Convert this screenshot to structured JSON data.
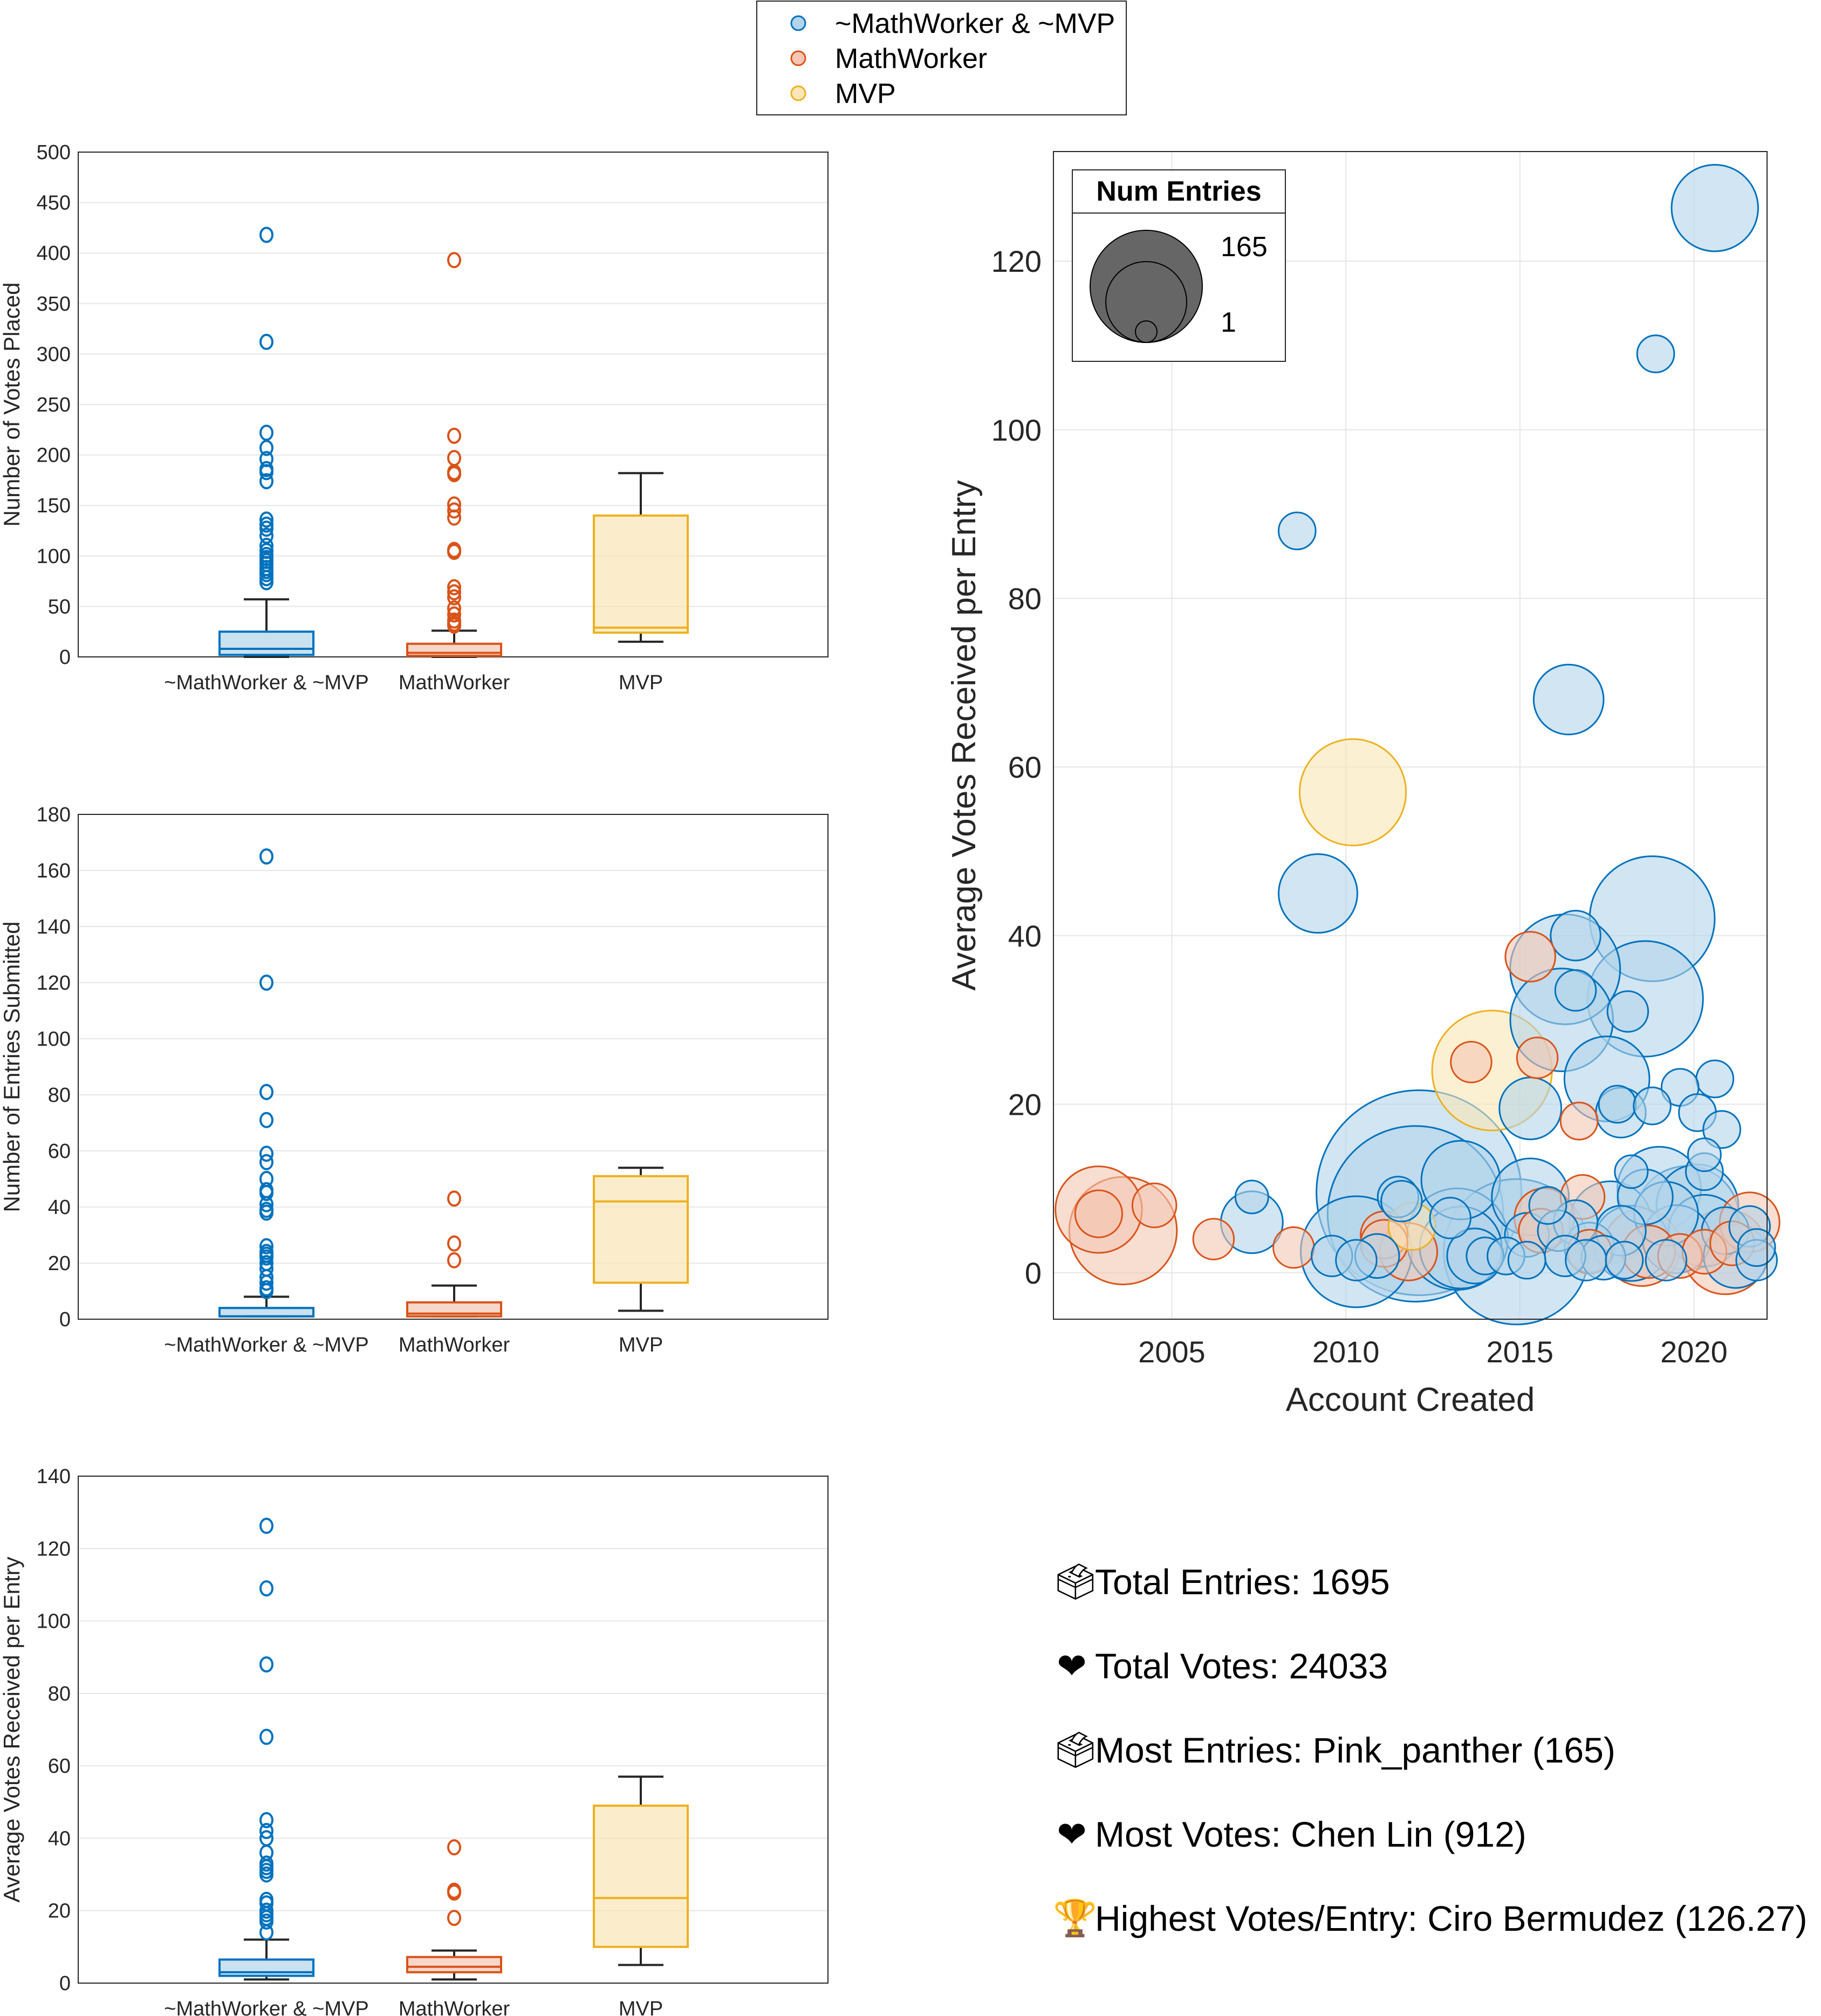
{
  "colors": {
    "neither": {
      "edge": "#0072BD",
      "fill": "#B3D4EA"
    },
    "mathworker": {
      "edge": "#D95319",
      "fill": "#F4C6B3"
    },
    "mvp": {
      "edge": "#EDB120",
      "fill": "#FAE6B6"
    },
    "whisker": "#262626",
    "grid": "#E6E6E6",
    "legend_bubble": "#666666"
  },
  "legend": {
    "items": [
      {
        "key": "neither",
        "label": "~MathWorker & ~MVP"
      },
      {
        "key": "mathworker",
        "label": "MathWorker"
      },
      {
        "key": "mvp",
        "label": "MVP"
      }
    ]
  },
  "chart_data": [
    {
      "type": "box",
      "id": "votes-placed",
      "ylabel": "Number of Votes Placed",
      "ylim": [
        0,
        500
      ],
      "yticks": [
        0,
        50,
        100,
        150,
        200,
        250,
        300,
        350,
        400,
        450,
        500
      ],
      "categories": [
        "~MathWorker & ~MVP",
        "MathWorker",
        "MVP"
      ],
      "series": [
        {
          "key": "neither",
          "q1": 2,
          "median": 8,
          "q3": 25,
          "whisker_low": 0,
          "whisker_high": 57,
          "outliers": [
            418,
            312,
            222,
            207,
            196,
            186,
            183,
            174,
            136,
            131,
            127,
            120,
            110,
            105,
            101,
            98,
            95,
            92,
            88,
            85,
            82,
            78,
            74
          ]
        },
        {
          "key": "mathworker",
          "q1": 1,
          "median": 4,
          "q3": 13,
          "whisker_low": 0,
          "whisker_high": 26,
          "outliers": [
            393,
            219,
            197,
            183,
            181,
            151,
            145,
            138,
            106,
            104,
            69,
            64,
            59,
            48,
            42,
            36,
            33,
            31
          ]
        },
        {
          "key": "mvp",
          "q1": 24,
          "median": 29,
          "q3": 140,
          "whisker_low": 15,
          "whisker_high": 182,
          "outliers": []
        }
      ]
    },
    {
      "type": "box",
      "id": "entries-submitted",
      "ylabel": "Number of Entries Submitted",
      "ylim": [
        0,
        180
      ],
      "yticks": [
        0,
        20,
        40,
        60,
        80,
        100,
        120,
        140,
        160,
        180
      ],
      "categories": [
        "~MathWorker & ~MVP",
        "MathWorker",
        "MVP"
      ],
      "series": [
        {
          "key": "neither",
          "q1": 1,
          "median": 1,
          "q3": 4,
          "whisker_low": 1,
          "whisker_high": 8,
          "outliers": [
            165,
            120,
            81,
            71,
            59,
            56,
            50,
            46,
            45,
            41,
            39,
            38,
            26,
            24,
            23,
            22,
            20,
            18,
            15,
            13,
            11,
            10
          ]
        },
        {
          "key": "mathworker",
          "q1": 1,
          "median": 2,
          "q3": 6,
          "whisker_low": 1,
          "whisker_high": 12,
          "outliers": [
            43,
            27,
            21
          ]
        },
        {
          "key": "mvp",
          "q1": 13,
          "median": 42,
          "q3": 51,
          "whisker_low": 3,
          "whisker_high": 54,
          "outliers": []
        }
      ]
    },
    {
      "type": "box",
      "id": "avg-votes-per-entry",
      "ylabel": "Average Votes Received per Entry",
      "ylim": [
        0,
        140
      ],
      "yticks": [
        0,
        20,
        40,
        60,
        80,
        100,
        120,
        140
      ],
      "categories": [
        "~MathWorker & ~MVP",
        "MathWorker",
        "MVP"
      ],
      "series": [
        {
          "key": "neither",
          "q1": 2,
          "median": 3,
          "q3": 6.5,
          "whisker_low": 1,
          "whisker_high": 12,
          "outliers": [
            126.27,
            109,
            88,
            68,
            45,
            42,
            40,
            36,
            33,
            32,
            31,
            30,
            23,
            22,
            20,
            19,
            18,
            17,
            14
          ]
        },
        {
          "key": "mathworker",
          "q1": 3,
          "median": 4.5,
          "q3": 7.2,
          "whisker_low": 1,
          "whisker_high": 9,
          "outliers": [
            37.5,
            25.5,
            25,
            18
          ]
        },
        {
          "key": "mvp",
          "q1": 10,
          "median": 23.5,
          "q3": 49,
          "whisker_low": 5,
          "whisker_high": 57,
          "outliers": []
        }
      ]
    },
    {
      "type": "scatter",
      "id": "bubble",
      "xlabel": "Account Created",
      "ylabel": "Average Votes Received per Entry",
      "xlim": [
        2001.6,
        2022.1
      ],
      "ylim": [
        -5.5,
        133
      ],
      "xticks": [
        2005,
        2010,
        2015,
        2020
      ],
      "yticks": [
        0,
        20,
        40,
        60,
        80,
        100,
        120
      ],
      "grid": true,
      "size_legend": {
        "title": "Num Entries",
        "max_label": "165",
        "min_label": "1",
        "max": 165,
        "min": 1,
        "placement": "top-left"
      },
      "points": [
        {
          "g": "neither",
          "x": 2020.6,
          "y": 126.3,
          "n": 27
        },
        {
          "g": "neither",
          "x": 2018.9,
          "y": 109,
          "n": 4
        },
        {
          "g": "neither",
          "x": 2008.6,
          "y": 88,
          "n": 4
        },
        {
          "g": "neither",
          "x": 2016.4,
          "y": 68,
          "n": 17
        },
        {
          "g": "mvp",
          "x": 2010.2,
          "y": 57,
          "n": 42
        },
        {
          "g": "neither",
          "x": 2009.2,
          "y": 45,
          "n": 22
        },
        {
          "g": "neither",
          "x": 2018.8,
          "y": 42,
          "n": 59
        },
        {
          "g": "neither",
          "x": 2016.6,
          "y": 40,
          "n": 8
        },
        {
          "g": "mathworker",
          "x": 2015.3,
          "y": 37.5,
          "n": 8
        },
        {
          "g": "neither",
          "x": 2016.3,
          "y": 36,
          "n": 45
        },
        {
          "g": "neither",
          "x": 2016.6,
          "y": 33.5,
          "n": 5
        },
        {
          "g": "neither",
          "x": 2018.6,
          "y": 32.5,
          "n": 50
        },
        {
          "g": "neither",
          "x": 2018.1,
          "y": 31,
          "n": 5
        },
        {
          "g": "neither",
          "x": 2016.2,
          "y": 30,
          "n": 39
        },
        {
          "g": "mathworker",
          "x": 2015.5,
          "y": 25.5,
          "n": 5
        },
        {
          "g": "mathworker",
          "x": 2013.6,
          "y": 25,
          "n": 5
        },
        {
          "g": "mvp",
          "x": 2014.2,
          "y": 24,
          "n": 54
        },
        {
          "g": "neither",
          "x": 2017.5,
          "y": 23,
          "n": 26
        },
        {
          "g": "neither",
          "x": 2020.6,
          "y": 23,
          "n": 4
        },
        {
          "g": "neither",
          "x": 2019.6,
          "y": 22,
          "n": 4
        },
        {
          "g": "neither",
          "x": 2017.8,
          "y": 20,
          "n": 4
        },
        {
          "g": "neither",
          "x": 2018.8,
          "y": 19.8,
          "n": 4
        },
        {
          "g": "neither",
          "x": 2017.9,
          "y": 19,
          "n": 8
        },
        {
          "g": "neither",
          "x": 2015.3,
          "y": 19.5,
          "n": 13
        },
        {
          "g": "neither",
          "x": 2020.1,
          "y": 19,
          "n": 4
        },
        {
          "g": "mathworker",
          "x": 2016.7,
          "y": 18,
          "n": 4
        },
        {
          "g": "neither",
          "x": 2020.8,
          "y": 17,
          "n": 4
        },
        {
          "g": "neither",
          "x": 2020.3,
          "y": 14,
          "n": 3
        },
        {
          "g": "neither",
          "x": 2018.2,
          "y": 12,
          "n": 3
        },
        {
          "g": "neither",
          "x": 2020.3,
          "y": 12,
          "n": 4
        },
        {
          "g": "neither",
          "x": 2012.1,
          "y": 9.5,
          "n": 165
        },
        {
          "g": "neither",
          "x": 2012.0,
          "y": 7,
          "n": 120
        },
        {
          "g": "neither",
          "x": 2013.3,
          "y": 11,
          "n": 22
        },
        {
          "g": "neither",
          "x": 2007.3,
          "y": 9,
          "n": 3
        },
        {
          "g": "neither",
          "x": 2007.3,
          "y": 6,
          "n": 13
        },
        {
          "g": "mathworker",
          "x": 2002.9,
          "y": 7.5,
          "n": 27
        },
        {
          "g": "mathworker",
          "x": 2002.9,
          "y": 7,
          "n": 7
        },
        {
          "g": "mathworker",
          "x": 2003.6,
          "y": 5,
          "n": 43
        },
        {
          "g": "mathworker",
          "x": 2004.5,
          "y": 8,
          "n": 6
        },
        {
          "g": "mathworker",
          "x": 2006.2,
          "y": 4,
          "n": 5
        },
        {
          "g": "mathworker",
          "x": 2008.5,
          "y": 3,
          "n": 5
        },
        {
          "g": "neither",
          "x": 2010.3,
          "y": 2.5,
          "n": 46
        },
        {
          "g": "neither",
          "x": 2009.6,
          "y": 2,
          "n": 5
        },
        {
          "g": "neither",
          "x": 2010.3,
          "y": 1.5,
          "n": 5
        },
        {
          "g": "neither",
          "x": 2010.9,
          "y": 2,
          "n": 6
        },
        {
          "g": "mathworker",
          "x": 2011.1,
          "y": 4.5,
          "n": 7
        },
        {
          "g": "mathworker",
          "x": 2011.1,
          "y": 3.5,
          "n": 7
        },
        {
          "g": "mvp",
          "x": 2011.9,
          "y": 5.5,
          "n": 7
        },
        {
          "g": "mathworker",
          "x": 2011.8,
          "y": 2.5,
          "n": 11
        },
        {
          "g": "neither",
          "x": 2011.5,
          "y": 9,
          "n": 5
        },
        {
          "g": "neither",
          "x": 2011.6,
          "y": 8.5,
          "n": 5
        },
        {
          "g": "neither",
          "x": 2013.0,
          "y": 6.5,
          "n": 5
        },
        {
          "g": "neither",
          "x": 2013.2,
          "y": 4,
          "n": 38
        },
        {
          "g": "neither",
          "x": 2013.3,
          "y": 3,
          "n": 24
        },
        {
          "g": "neither",
          "x": 2013.7,
          "y": 2,
          "n": 10
        },
        {
          "g": "neither",
          "x": 2014.0,
          "y": 2,
          "n": 4
        },
        {
          "g": "neither",
          "x": 2014.6,
          "y": 2,
          "n": 4
        },
        {
          "g": "neither",
          "x": 2014.9,
          "y": 2.5,
          "n": 81
        },
        {
          "g": "neither",
          "x": 2015.3,
          "y": 9,
          "n": 21
        },
        {
          "g": "neither",
          "x": 2015.2,
          "y": 4.5,
          "n": 6
        },
        {
          "g": "neither",
          "x": 2015.2,
          "y": 1.5,
          "n": 4
        },
        {
          "g": "mathworker",
          "x": 2015.7,
          "y": 6.5,
          "n": 12
        },
        {
          "g": "mathworker",
          "x": 2015.6,
          "y": 5,
          "n": 6
        },
        {
          "g": "neither",
          "x": 2015.8,
          "y": 8,
          "n": 4
        },
        {
          "g": "neither",
          "x": 2016.1,
          "y": 5,
          "n": 5
        },
        {
          "g": "neither",
          "x": 2016.3,
          "y": 2,
          "n": 5
        },
        {
          "g": "mathworker",
          "x": 2016.8,
          "y": 9,
          "n": 6
        },
        {
          "g": "neither",
          "x": 2016.6,
          "y": 6,
          "n": 6
        },
        {
          "g": "neither",
          "x": 2017.0,
          "y": 3,
          "n": 8
        },
        {
          "g": "mathworker",
          "x": 2017.0,
          "y": 2.5,
          "n": 6
        },
        {
          "g": "neither",
          "x": 2017.4,
          "y": 1.8,
          "n": 6
        },
        {
          "g": "neither",
          "x": 2017.6,
          "y": 6,
          "n": 24
        },
        {
          "g": "neither",
          "x": 2017.9,
          "y": 5,
          "n": 8
        },
        {
          "g": "neither",
          "x": 2018.2,
          "y": 3.5,
          "n": 20
        },
        {
          "g": "mathworker",
          "x": 2018.5,
          "y": 3,
          "n": 21
        },
        {
          "g": "mathworker",
          "x": 2018.7,
          "y": 2.5,
          "n": 9
        },
        {
          "g": "neither",
          "x": 2018.6,
          "y": 9,
          "n": 10
        },
        {
          "g": "neither",
          "x": 2019.0,
          "y": 10,
          "n": 25
        },
        {
          "g": "neither",
          "x": 2019.2,
          "y": 7,
          "n": 14
        },
        {
          "g": "neither",
          "x": 2019.5,
          "y": 4,
          "n": 16
        },
        {
          "g": "neither",
          "x": 2019.8,
          "y": 6.5,
          "n": 40
        },
        {
          "g": "neither",
          "x": 2020.1,
          "y": 8,
          "n": 24
        },
        {
          "g": "neither",
          "x": 2020.3,
          "y": 5,
          "n": 18
        },
        {
          "g": "mathworker",
          "x": 2019.6,
          "y": 2,
          "n": 6
        },
        {
          "g": "mathworker",
          "x": 2020.3,
          "y": 2.5,
          "n": 6
        },
        {
          "g": "mathworker",
          "x": 2020.9,
          "y": 2.5,
          "n": 26
        },
        {
          "g": "mathworker",
          "x": 2021.1,
          "y": 3.5,
          "n": 6
        },
        {
          "g": "mathworker",
          "x": 2021.6,
          "y": 6,
          "n": 12
        },
        {
          "g": "neither",
          "x": 2021.6,
          "y": 5.5,
          "n": 5
        },
        {
          "g": "neither",
          "x": 2021.2,
          "y": 2,
          "n": 14
        },
        {
          "g": "neither",
          "x": 2021.8,
          "y": 1.5,
          "n": 5
        },
        {
          "g": "neither",
          "x": 2021.8,
          "y": 3,
          "n": 4
        },
        {
          "g": "neither",
          "x": 2020.9,
          "y": 5,
          "n": 7
        },
        {
          "g": "neither",
          "x": 2019.2,
          "y": 1.5,
          "n": 5
        },
        {
          "g": "neither",
          "x": 2018.0,
          "y": 1.5,
          "n": 4
        },
        {
          "g": "neither",
          "x": 2016.9,
          "y": 1.5,
          "n": 5
        }
      ]
    }
  ],
  "stats": [
    {
      "icon": "ballot-box-icon",
      "glyph": "🗳",
      "label": "Total Entries: 1695"
    },
    {
      "icon": "heart-icon",
      "glyph": "❤",
      "label": "Total Votes: 24033"
    },
    {
      "icon": "ballot-box-icon",
      "glyph": "🗳",
      "label": "Most Entries: Pink_panther (165)"
    },
    {
      "icon": "heart-icon",
      "glyph": "❤",
      "label": "Most Votes: Chen Lin (912)"
    },
    {
      "icon": "trophy-icon",
      "glyph": "🏆",
      "label": "Highest Votes/Entry: Ciro Bermudez (126.27)"
    }
  ]
}
